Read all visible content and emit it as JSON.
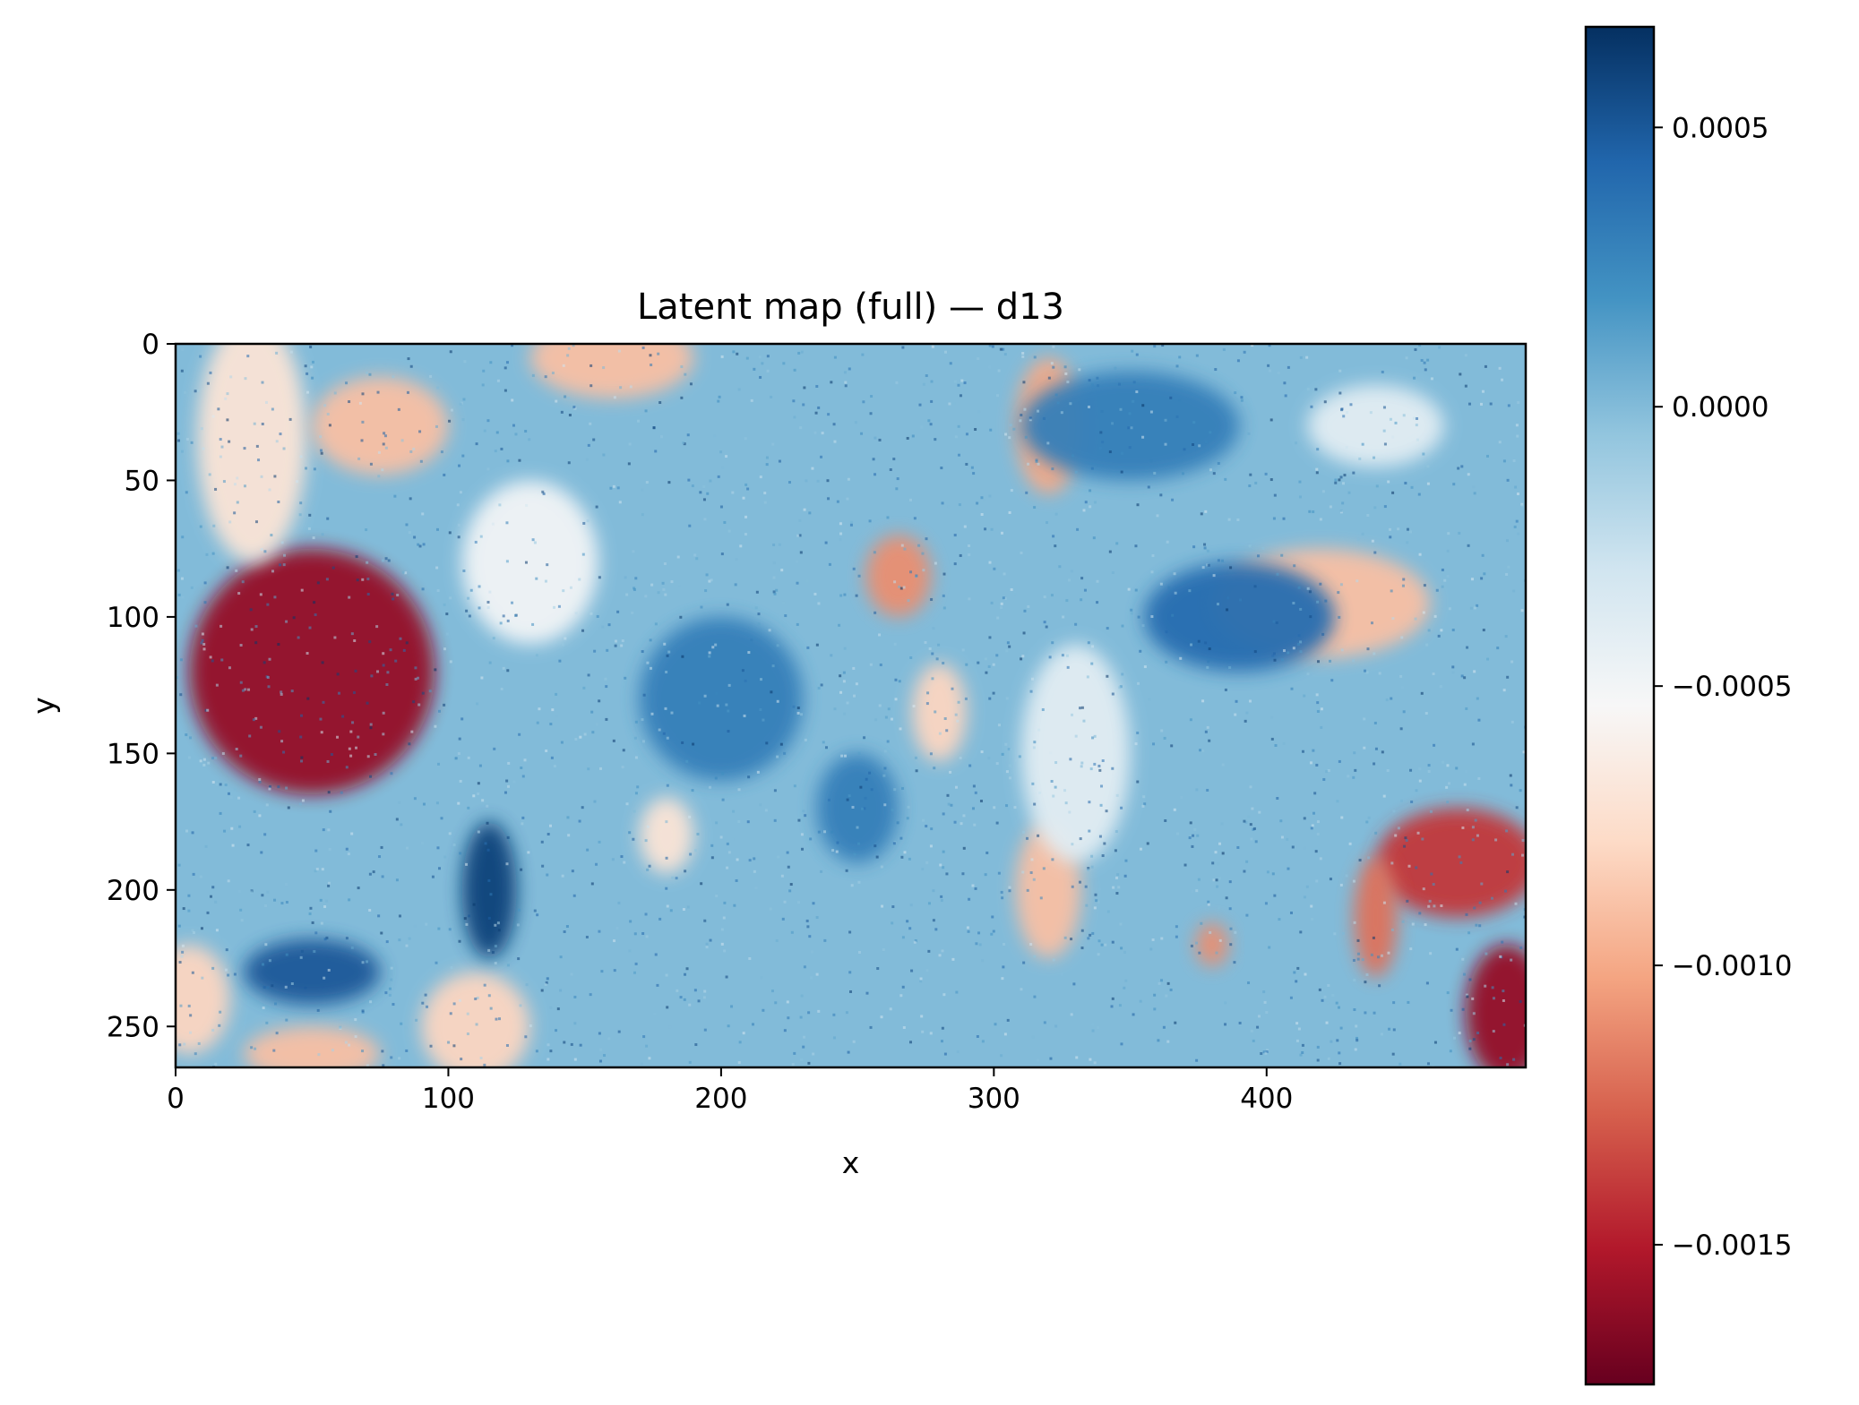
{
  "chart_data": {
    "type": "heatmap",
    "title": "Latent map (full) — d13",
    "xlabel": "x",
    "ylabel": "y",
    "xlim": [
      0,
      495
    ],
    "ylim": [
      265,
      0
    ],
    "x_ticks": [
      0,
      100,
      200,
      300,
      400
    ],
    "y_ticks": [
      0,
      50,
      100,
      150,
      200,
      250
    ],
    "colormap": "RdBu",
    "colormap_stops": [
      "#67001f",
      "#b2182b",
      "#d6604d",
      "#f4a582",
      "#fddbc7",
      "#f7f7f7",
      "#d1e5f0",
      "#92c5de",
      "#4393c3",
      "#2166ac",
      "#053061"
    ],
    "colorbar": {
      "range": [
        -0.00175,
        0.00068
      ],
      "ticks": [
        0.0005,
        0.0,
        -0.0005,
        -0.001,
        -0.0015
      ],
      "tick_labels": [
        "0.0005",
        "0.0000",
        "−0.0005",
        "−0.0010",
        "−0.0015"
      ]
    },
    "typical_value": 0.0,
    "regions": [
      {
        "x": 50,
        "y": 120,
        "rx": 45,
        "ry": 45,
        "value": -0.0016
      },
      {
        "x": 28,
        "y": 35,
        "rx": 20,
        "ry": 45,
        "value": -0.0007
      },
      {
        "x": 75,
        "y": 30,
        "rx": 25,
        "ry": 18,
        "value": -0.0009
      },
      {
        "x": 160,
        "y": 5,
        "rx": 30,
        "ry": 15,
        "value": -0.0009
      },
      {
        "x": 265,
        "y": 85,
        "rx": 12,
        "ry": 15,
        "value": -0.0011
      },
      {
        "x": 320,
        "y": 30,
        "rx": 12,
        "ry": 25,
        "value": -0.001
      },
      {
        "x": 420,
        "y": 95,
        "rx": 40,
        "ry": 20,
        "value": -0.0009
      },
      {
        "x": 470,
        "y": 190,
        "rx": 30,
        "ry": 20,
        "value": -0.0014
      },
      {
        "x": 440,
        "y": 210,
        "rx": 8,
        "ry": 22,
        "value": -0.0012
      },
      {
        "x": 488,
        "y": 245,
        "rx": 15,
        "ry": 25,
        "value": -0.0016
      },
      {
        "x": 110,
        "y": 250,
        "rx": 20,
        "ry": 20,
        "value": -0.0008
      },
      {
        "x": 50,
        "y": 260,
        "rx": 25,
        "ry": 10,
        "value": -0.0009
      },
      {
        "x": 5,
        "y": 240,
        "rx": 15,
        "ry": 20,
        "value": -0.0008
      },
      {
        "x": 280,
        "y": 135,
        "rx": 10,
        "ry": 18,
        "value": -0.0008
      },
      {
        "x": 320,
        "y": 200,
        "rx": 12,
        "ry": 25,
        "value": -0.0009
      },
      {
        "x": 380,
        "y": 220,
        "rx": 6,
        "ry": 8,
        "value": -0.0011
      },
      {
        "x": 180,
        "y": 180,
        "rx": 10,
        "ry": 14,
        "value": -0.0007
      },
      {
        "x": 115,
        "y": 200,
        "rx": 10,
        "ry": 25,
        "value": 0.0006
      },
      {
        "x": 50,
        "y": 230,
        "rx": 25,
        "ry": 12,
        "value": 0.0005
      },
      {
        "x": 390,
        "y": 100,
        "rx": 35,
        "ry": 20,
        "value": 0.0004
      },
      {
        "x": 200,
        "y": 130,
        "rx": 30,
        "ry": 30,
        "value": 0.0003
      },
      {
        "x": 350,
        "y": 30,
        "rx": 40,
        "ry": 20,
        "value": 0.0003
      },
      {
        "x": 130,
        "y": 80,
        "rx": 25,
        "ry": 30,
        "value": -0.0005
      },
      {
        "x": 330,
        "y": 150,
        "rx": 20,
        "ry": 40,
        "value": -0.0004
      },
      {
        "x": 250,
        "y": 170,
        "rx": 15,
        "ry": 20,
        "value": 0.0003
      },
      {
        "x": 440,
        "y": 30,
        "rx": 25,
        "ry": 15,
        "value": -0.0004
      }
    ]
  }
}
